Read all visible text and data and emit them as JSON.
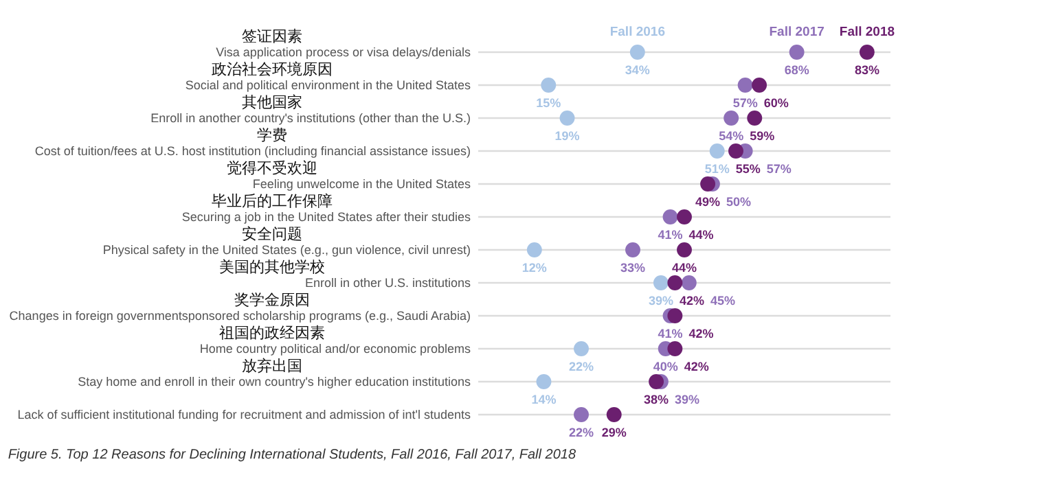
{
  "chart_data": {
    "type": "scatter",
    "orientation": "horizontal",
    "title": "Figure 5. Top 12 Reasons for Declining International Students, Fall 2016, Fall 2017, Fall 2018",
    "categories": [
      "Visa application process or visa delays/denials",
      "Social and political environment in the United States",
      "Enroll in another country's institutions (other than the U.S.)",
      "Cost of tuition/fees at U.S. host institution (including financial assistance issues)",
      "Feeling unwelcome in the United States",
      "Securing a job in the United States after their studies",
      "Physical safety in the United States (e.g., gun violence, civil unrest)",
      "Enroll in other U.S. institutions",
      "Changes in foreign governmentsponsored scholarship programs (e.g., Saudi Arabia)",
      "Home country political and/or economic problems",
      "Stay home and enroll in their own country's higher education institutions",
      "Lack of sufficient institutional funding for recruitment and admission of int'l students"
    ],
    "series": [
      {
        "name": "Fall 2016",
        "color": "#a7c4e5",
        "values": [
          34,
          15,
          19,
          51,
          null,
          null,
          12,
          39,
          null,
          22,
          14,
          null
        ],
        "value_labels": [
          "34%",
          "15%",
          "19%",
          "51%",
          null,
          null,
          "12%",
          "39%",
          null,
          "22%",
          "14%",
          null
        ]
      },
      {
        "name": "Fall 2017",
        "color": "#8e6fb8",
        "values": [
          68,
          57,
          54,
          57,
          50,
          41,
          33,
          45,
          41,
          40,
          39,
          22
        ],
        "value_labels": [
          "68%",
          "57%",
          "54%",
          "57%",
          "50%",
          "41%",
          "33%",
          "45%",
          "41%",
          "40%",
          "39%",
          "22%"
        ]
      },
      {
        "name": "Fall 2018",
        "color": "#6b1f6f",
        "values": [
          83,
          60,
          59,
          55,
          49,
          44,
          44,
          42,
          42,
          42,
          38,
          29
        ],
        "value_labels": [
          "83%",
          "60%",
          "59%",
          "55%",
          "49%",
          "44%",
          "44%",
          "42%",
          "42%",
          "42%",
          "38%",
          "29%"
        ]
      }
    ],
    "xlim": [
      0,
      88
    ],
    "tick_labels": "y",
    "grid": "y",
    "legend": false,
    "marker": "circle",
    "annotations": [
      "签证因素",
      "政治社会环境原因",
      "其他国家",
      "学费",
      "觉得不受欢迎",
      "毕业后的工作保障",
      "安全问题",
      "美国的其他学校",
      "奖学金原因",
      "祖国的政经因素",
      "放弃出国"
    ]
  }
}
